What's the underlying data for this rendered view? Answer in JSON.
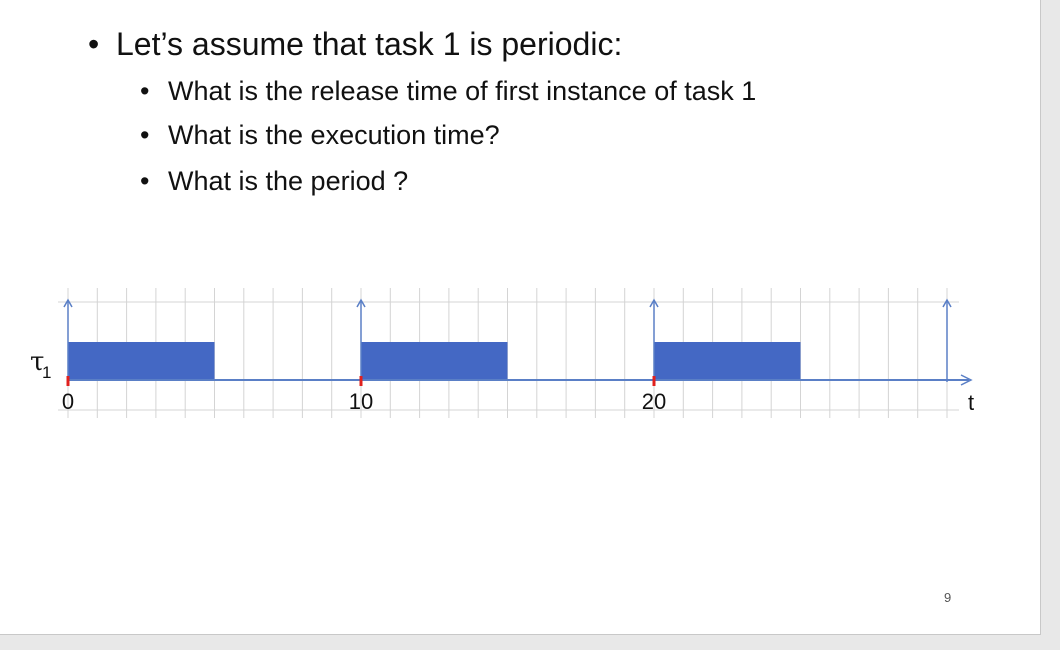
{
  "slide": {
    "bullet_main": "Let’s assume that task 1 is periodic:",
    "sub_bullets": [
      "What is the release time of first instance of task 1",
      "What is the execution time?",
      "What is the period ?"
    ],
    "page_number": "9"
  },
  "chart_data": {
    "type": "timeline",
    "task_label": "τ",
    "task_subscript": "1",
    "x_ticks": [
      {
        "value": 0,
        "label": "0"
      },
      {
        "value": 10,
        "label": "10"
      },
      {
        "value": 20,
        "label": "20"
      }
    ],
    "axis_label": "t",
    "xlim": [
      0,
      30
    ],
    "release_times": [
      0,
      10,
      20,
      30
    ],
    "jobs": [
      {
        "start": 0,
        "end": 5
      },
      {
        "start": 10,
        "end": 15
      },
      {
        "start": 20,
        "end": 25
      }
    ],
    "colors": {
      "job": "#4468c4",
      "axis": "#5a7fc6",
      "grid": "#d4d4d4",
      "tick": "#e0201e"
    }
  }
}
